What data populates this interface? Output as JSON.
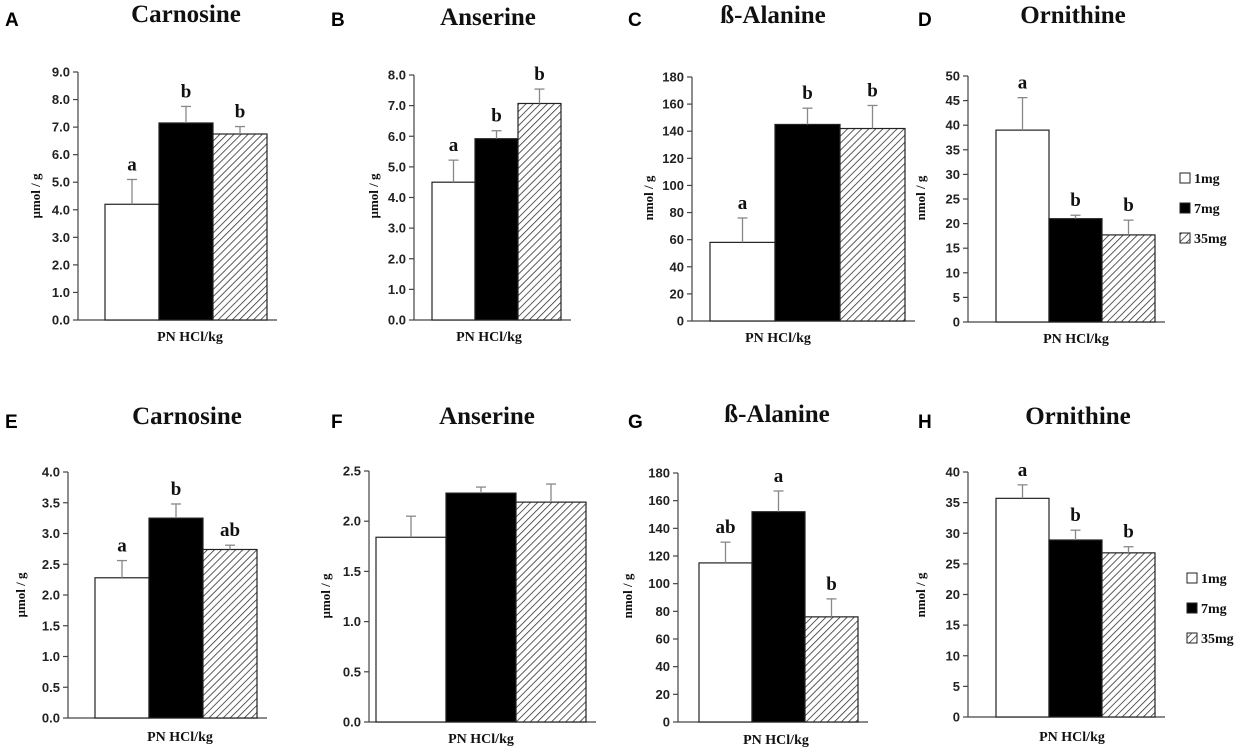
{
  "colors": {
    "bar_1mg": "#ffffff",
    "bar_7mg": "#000000",
    "bar_35mg": "hatch",
    "outline": "#222222"
  },
  "legends": [
    {
      "entries": [
        "1mg",
        "7mg",
        "35mg"
      ]
    },
    {
      "entries": [
        "1mg",
        "7mg",
        "35mg"
      ]
    }
  ],
  "chart_data": [
    {
      "panel": "A",
      "type": "bar",
      "title": "Carnosine",
      "xlabel": "PN HCl/kg",
      "ylabel": "µmol / g",
      "ylim": [
        0,
        9
      ],
      "yticks": [
        "0.0",
        "1.0",
        "2.0",
        "3.0",
        "4.0",
        "5.0",
        "6.0",
        "7.0",
        "8.0",
        "9.0"
      ],
      "series": [
        {
          "name": "1mg",
          "value": 4.2,
          "error": 0.9,
          "label": "a"
        },
        {
          "name": "7mg",
          "value": 7.15,
          "error": 0.6,
          "label": "b"
        },
        {
          "name": "35mg",
          "value": 6.75,
          "error": 0.27,
          "label": "b"
        }
      ]
    },
    {
      "panel": "B",
      "type": "bar",
      "title": "Anserine",
      "xlabel": "PN HCl/kg",
      "ylabel": "µmol / g",
      "ylim": [
        0,
        8
      ],
      "yticks": [
        "0.0",
        "1.0",
        "2.0",
        "3.0",
        "4.0",
        "5.0",
        "6.0",
        "7.0",
        "8.0"
      ],
      "series": [
        {
          "name": "1mg",
          "value": 4.5,
          "error": 0.72,
          "label": "a"
        },
        {
          "name": "7mg",
          "value": 5.92,
          "error": 0.26,
          "label": "b"
        },
        {
          "name": "35mg",
          "value": 7.07,
          "error": 0.47,
          "label": "b"
        }
      ]
    },
    {
      "panel": "C",
      "type": "bar",
      "title": "ß-Alanine",
      "xlabel": "PN HCl/kg",
      "ylabel": "nmol / g",
      "ylim": [
        0,
        180
      ],
      "yticks": [
        "0",
        "20",
        "40",
        "60",
        "80",
        "100",
        "120",
        "140",
        "160",
        "180"
      ],
      "series": [
        {
          "name": "1mg",
          "value": 58,
          "error": 18,
          "label": "a"
        },
        {
          "name": "7mg",
          "value": 145,
          "error": 12,
          "label": "b"
        },
        {
          "name": "35mg",
          "value": 142,
          "error": 17,
          "label": "b"
        }
      ]
    },
    {
      "panel": "D",
      "type": "bar",
      "title": "Ornithine",
      "xlabel": "PN HCl/kg",
      "ylabel": "nmol / g",
      "ylim": [
        0,
        50
      ],
      "yticks": [
        "0",
        "5",
        "10",
        "15",
        "20",
        "25",
        "30",
        "35",
        "40",
        "45",
        "50"
      ],
      "series": [
        {
          "name": "1mg",
          "value": 39,
          "error": 6.6,
          "label": "a"
        },
        {
          "name": "7mg",
          "value": 21,
          "error": 0.7,
          "label": "b"
        },
        {
          "name": "35mg",
          "value": 17.7,
          "error": 3,
          "label": "b"
        }
      ]
    },
    {
      "panel": "E",
      "type": "bar",
      "title": "Carnosine",
      "xlabel": "PN HCl/kg",
      "ylabel": "µmol / g",
      "ylim": [
        0,
        4
      ],
      "yticks": [
        "0.0",
        "0.5",
        "1.0",
        "1.5",
        "2.0",
        "2.5",
        "3.0",
        "3.5",
        "4.0"
      ],
      "series": [
        {
          "name": "1mg",
          "value": 2.28,
          "error": 0.28,
          "label": "a"
        },
        {
          "name": "7mg",
          "value": 3.25,
          "error": 0.23,
          "label": "b"
        },
        {
          "name": "35mg",
          "value": 2.74,
          "error": 0.07,
          "label": "ab"
        }
      ]
    },
    {
      "panel": "F",
      "type": "bar",
      "title": "Anserine",
      "xlabel": "PN HCl/kg",
      "ylabel": "µmol / g",
      "ylim": [
        0,
        2.5
      ],
      "yticks": [
        "0.0",
        "0.5",
        "1.0",
        "1.5",
        "2.0",
        "2.5"
      ],
      "series": [
        {
          "name": "1mg",
          "value": 1.84,
          "error": 0.21,
          "label": ""
        },
        {
          "name": "7mg",
          "value": 2.28,
          "error": 0.06,
          "label": ""
        },
        {
          "name": "35mg",
          "value": 2.19,
          "error": 0.18,
          "label": ""
        }
      ]
    },
    {
      "panel": "G",
      "type": "bar",
      "title": "ß-Alanine",
      "xlabel": "PN HCl/kg",
      "ylabel": "nmol / g",
      "ylim": [
        0,
        180
      ],
      "yticks": [
        "0",
        "20",
        "40",
        "60",
        "80",
        "100",
        "120",
        "140",
        "160",
        "180"
      ],
      "series": [
        {
          "name": "1mg",
          "value": 115,
          "error": 15,
          "label": "ab"
        },
        {
          "name": "7mg",
          "value": 152,
          "error": 15,
          "label": "a"
        },
        {
          "name": "35mg",
          "value": 76,
          "error": 13,
          "label": "b"
        }
      ]
    },
    {
      "panel": "H",
      "type": "bar",
      "title": "Ornithine",
      "xlabel": "PN HCl/kg",
      "ylabel": "nmol / g",
      "ylim": [
        0,
        40
      ],
      "yticks": [
        "0",
        "5",
        "10",
        "15",
        "20",
        "25",
        "30",
        "35",
        "40"
      ],
      "series": [
        {
          "name": "1mg",
          "value": 35.7,
          "error": 2.2,
          "label": "a"
        },
        {
          "name": "7mg",
          "value": 28.9,
          "error": 1.6,
          "label": "b"
        },
        {
          "name": "35mg",
          "value": 26.8,
          "error": 1,
          "label": "b"
        }
      ]
    }
  ]
}
